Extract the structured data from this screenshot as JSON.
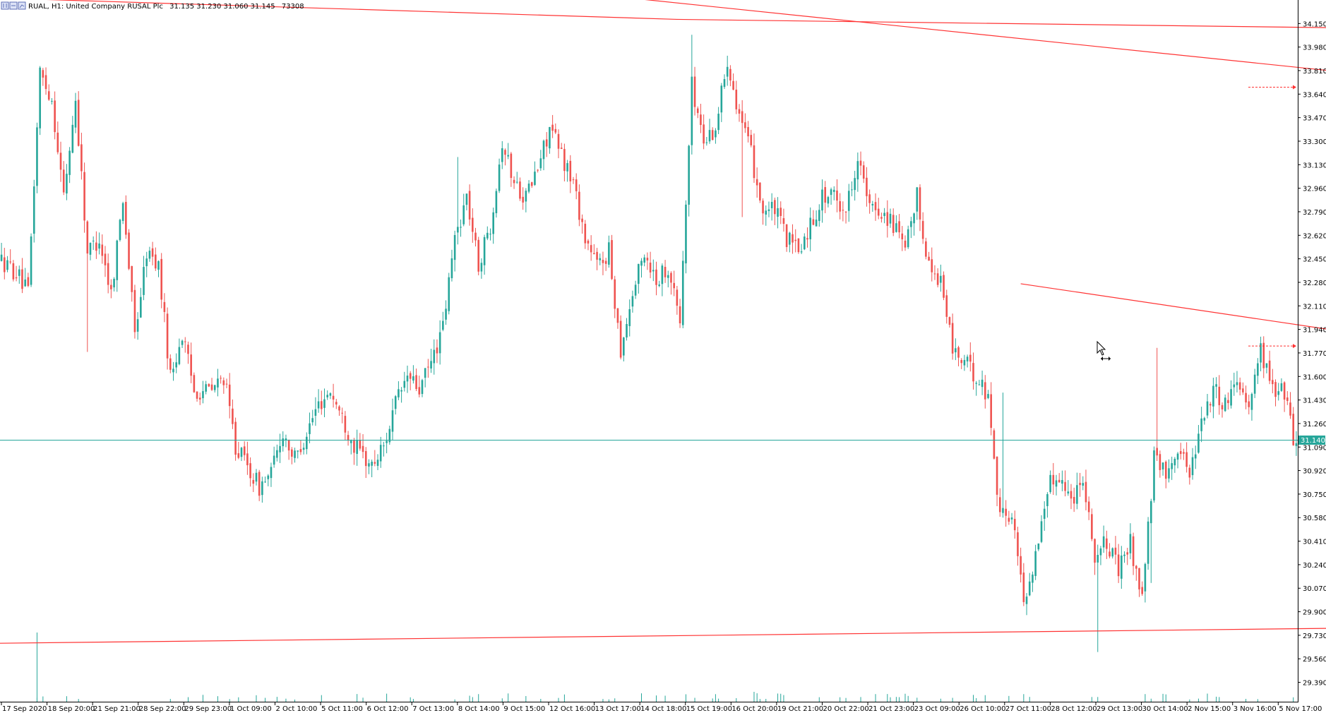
{
  "header": {
    "symbol_info": "RUAL, H1:  United Company RUSAL Plc",
    "ohlc": "31.135 31.230 31.060 31.145",
    "volume": "73308",
    "icon_names": [
      "chart-type-icon",
      "chart-type-icon",
      "chart-type-icon"
    ]
  },
  "colors": {
    "bull": "#26a69a",
    "bear": "#ef5350",
    "trendline": "#ff3333",
    "bid_line": "#26a69a",
    "axis": "#000000",
    "background": "#ffffff"
  },
  "current_price_label": "31.140",
  "chart_data": {
    "type": "candlestick",
    "title": "",
    "ylim": [
      29.25,
      34.32
    ],
    "y_ticks": [
      "34.150",
      "33.980",
      "33.810",
      "33.640",
      "33.470",
      "33.300",
      "33.130",
      "32.960",
      "32.790",
      "32.620",
      "32.450",
      "32.280",
      "32.110",
      "31.940",
      "31.770",
      "31.600",
      "31.430",
      "31.260",
      "31.090",
      "30.920",
      "30.750",
      "30.580",
      "30.410",
      "30.240",
      "30.070",
      "29.900",
      "29.730",
      "29.560",
      "29.390"
    ],
    "y_tick_values": [
      34.15,
      33.98,
      33.81,
      33.64,
      33.47,
      33.3,
      33.13,
      32.96,
      32.79,
      32.62,
      32.45,
      32.28,
      32.11,
      31.94,
      31.77,
      31.6,
      31.43,
      31.26,
      31.09,
      30.92,
      30.75,
      30.58,
      30.41,
      30.24,
      30.07,
      29.9,
      29.73,
      29.56,
      29.39
    ],
    "x_labels": [
      "17 Sep 2020",
      "18 Sep 20:00",
      "21 Sep 21:00",
      "28 Sep 22:00",
      "29 Sep 23:00",
      "1 Oct 09:00",
      "2 Oct 10:00",
      "5 Oct 11:00",
      "6 Oct 12:00",
      "7 Oct 13:00",
      "8 Oct 14:00",
      "9 Oct 15:00",
      "12 Oct 16:00",
      "13 Oct 17:00",
      "14 Oct 18:00",
      "15 Oct 19:00",
      "16 Oct 20:00",
      "19 Oct 21:00",
      "20 Oct 22:00",
      "21 Oct 23:00",
      "23 Oct 09:00",
      "26 Oct 10:00",
      "27 Oct 11:00",
      "28 Oct 12:00",
      "29 Oct 13:00",
      "30 Oct 14:00",
      "2 Nov 15:00",
      "3 Nov 16:00",
      "5 Nov 17:00"
    ],
    "current_price": 31.14,
    "anchors": [
      [
        0,
        32.45
      ],
      [
        6,
        32.35
      ],
      [
        10,
        32.2
      ],
      [
        14,
        33.8
      ],
      [
        18,
        33.6
      ],
      [
        22,
        32.9
      ],
      [
        26,
        33.6
      ],
      [
        30,
        32.5
      ],
      [
        34,
        32.6
      ],
      [
        38,
        32.2
      ],
      [
        42,
        32.9
      ],
      [
        46,
        31.9
      ],
      [
        50,
        32.5
      ],
      [
        54,
        32.4
      ],
      [
        58,
        31.6
      ],
      [
        62,
        31.9
      ],
      [
        66,
        31.5
      ],
      [
        72,
        31.5
      ],
      [
        76,
        31.6
      ],
      [
        80,
        31.1
      ],
      [
        84,
        30.95
      ],
      [
        88,
        30.8
      ],
      [
        92,
        30.9
      ],
      [
        96,
        31.2
      ],
      [
        100,
        31.0
      ],
      [
        104,
        31.2
      ],
      [
        108,
        31.4
      ],
      [
        112,
        31.5
      ],
      [
        116,
        31.3
      ],
      [
        120,
        31.1
      ],
      [
        126,
        30.95
      ],
      [
        130,
        31.1
      ],
      [
        134,
        31.4
      ],
      [
        138,
        31.6
      ],
      [
        142,
        31.5
      ],
      [
        146,
        31.7
      ],
      [
        150,
        31.95
      ],
      [
        154,
        32.6
      ],
      [
        158,
        32.9
      ],
      [
        162,
        32.4
      ],
      [
        166,
        32.7
      ],
      [
        170,
        33.3
      ],
      [
        174,
        33.0
      ],
      [
        178,
        32.9
      ],
      [
        182,
        33.1
      ],
      [
        186,
        33.4
      ],
      [
        190,
        33.2
      ],
      [
        194,
        33.0
      ],
      [
        198,
        32.6
      ],
      [
        202,
        32.4
      ],
      [
        206,
        32.5
      ],
      [
        210,
        31.8
      ],
      [
        214,
        32.2
      ],
      [
        218,
        32.5
      ],
      [
        222,
        32.3
      ],
      [
        226,
        32.4
      ],
      [
        230,
        32.0
      ],
      [
        234,
        33.7
      ],
      [
        238,
        33.3
      ],
      [
        242,
        33.4
      ],
      [
        246,
        33.9
      ],
      [
        250,
        33.5
      ],
      [
        254,
        33.2
      ],
      [
        258,
        32.8
      ],
      [
        262,
        32.8
      ],
      [
        266,
        32.6
      ],
      [
        270,
        32.5
      ],
      [
        274,
        32.7
      ],
      [
        278,
        32.9
      ],
      [
        282,
        32.9
      ],
      [
        286,
        32.8
      ],
      [
        290,
        33.2
      ],
      [
        294,
        32.8
      ],
      [
        298,
        32.8
      ],
      [
        302,
        32.7
      ],
      [
        306,
        32.5
      ],
      [
        310,
        32.9
      ],
      [
        314,
        32.4
      ],
      [
        318,
        32.3
      ],
      [
        322,
        31.8
      ],
      [
        326,
        31.7
      ],
      [
        330,
        31.6
      ],
      [
        334,
        31.45
      ],
      [
        338,
        30.6
      ],
      [
        342,
        30.6
      ],
      [
        346,
        29.98
      ],
      [
        350,
        30.3
      ],
      [
        354,
        30.8
      ],
      [
        358,
        30.9
      ],
      [
        362,
        30.7
      ],
      [
        366,
        30.9
      ],
      [
        370,
        30.3
      ],
      [
        374,
        30.4
      ],
      [
        378,
        30.2
      ],
      [
        382,
        30.4
      ],
      [
        386,
        30.0
      ],
      [
        390,
        31.0
      ],
      [
        394,
        30.9
      ],
      [
        398,
        31.1
      ],
      [
        402,
        30.9
      ],
      [
        406,
        31.3
      ],
      [
        410,
        31.5
      ],
      [
        414,
        31.4
      ],
      [
        418,
        31.6
      ],
      [
        422,
        31.4
      ],
      [
        426,
        31.8
      ],
      [
        430,
        31.5
      ],
      [
        434,
        31.5
      ],
      [
        437,
        31.15
      ]
    ],
    "trendlines": [
      {
        "x1": -10,
        "y1": 34.34,
        "x2": 228,
        "y2": 34.18,
        "x3": 448,
        "y3": 34.12
      },
      {
        "x1": 205,
        "y1": 34.35,
        "x2": 448,
        "y2": 33.81
      },
      {
        "x1": 344,
        "y1": 32.27,
        "x2": 448,
        "y2": 31.94
      },
      {
        "x1": -10,
        "y1": 29.67,
        "x2": 448,
        "y2": 29.78
      }
    ],
    "alert_levels": [
      33.69,
      31.82
    ]
  }
}
